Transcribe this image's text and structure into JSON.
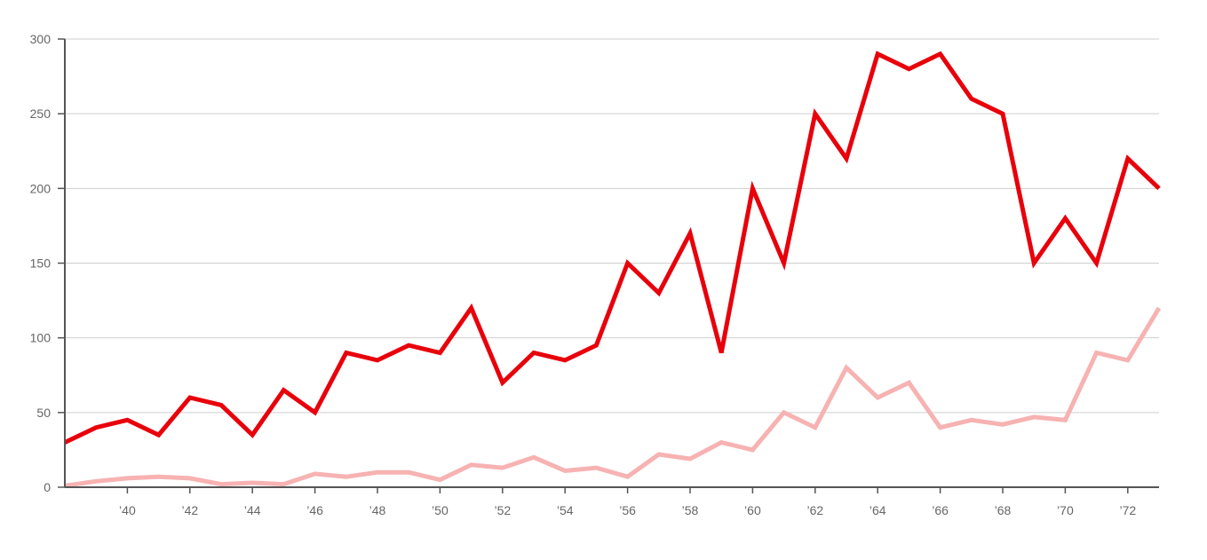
{
  "chart_data": {
    "type": "line",
    "title": "",
    "xlabel": "",
    "ylabel": "",
    "x": [
      1938,
      1939,
      1940,
      1941,
      1942,
      1943,
      1944,
      1945,
      1946,
      1947,
      1948,
      1949,
      1950,
      1951,
      1952,
      1953,
      1954,
      1955,
      1956,
      1957,
      1958,
      1959,
      1960,
      1961,
      1962,
      1963,
      1964,
      1965,
      1966,
      1967,
      1968,
      1969,
      1970,
      1971,
      1972,
      1973
    ],
    "xlim": [
      1938,
      1973
    ],
    "ylim": [
      0,
      300
    ],
    "y_ticks": [
      0,
      50,
      100,
      150,
      200,
      250,
      300
    ],
    "y_tick_labels": [
      "0",
      "50",
      "100",
      "150",
      "200",
      "250",
      "300"
    ],
    "x_ticks": [
      1940,
      1942,
      1944,
      1946,
      1948,
      1950,
      1952,
      1954,
      1956,
      1958,
      1960,
      1962,
      1964,
      1966,
      1968,
      1970,
      1972
    ],
    "x_tick_labels": [
      "’40",
      "’42",
      "’44",
      "’46",
      "’48",
      "’50",
      "’52",
      "’54",
      "’56",
      "’58",
      "’60",
      "’62",
      "’64",
      "’66",
      "’68",
      "’70",
      "’72"
    ],
    "grid": true,
    "series": [
      {
        "color": "#e8000b",
        "values": [
          30,
          40,
          45,
          35,
          60,
          55,
          35,
          65,
          50,
          90,
          85,
          95,
          90,
          120,
          70,
          90,
          85,
          95,
          150,
          130,
          170,
          90,
          200,
          150,
          250,
          220,
          290,
          280,
          290,
          260,
          250,
          150,
          180,
          150,
          220,
          200
        ]
      },
      {
        "color": "#f7b2b2",
        "values": [
          1,
          4,
          6,
          7,
          6,
          2,
          3,
          2,
          9,
          7,
          10,
          10,
          5,
          15,
          13,
          20,
          11,
          13,
          7,
          22,
          19,
          30,
          25,
          50,
          40,
          80,
          60,
          70,
          40,
          45,
          42,
          47,
          45,
          90,
          85,
          120
        ]
      }
    ]
  }
}
